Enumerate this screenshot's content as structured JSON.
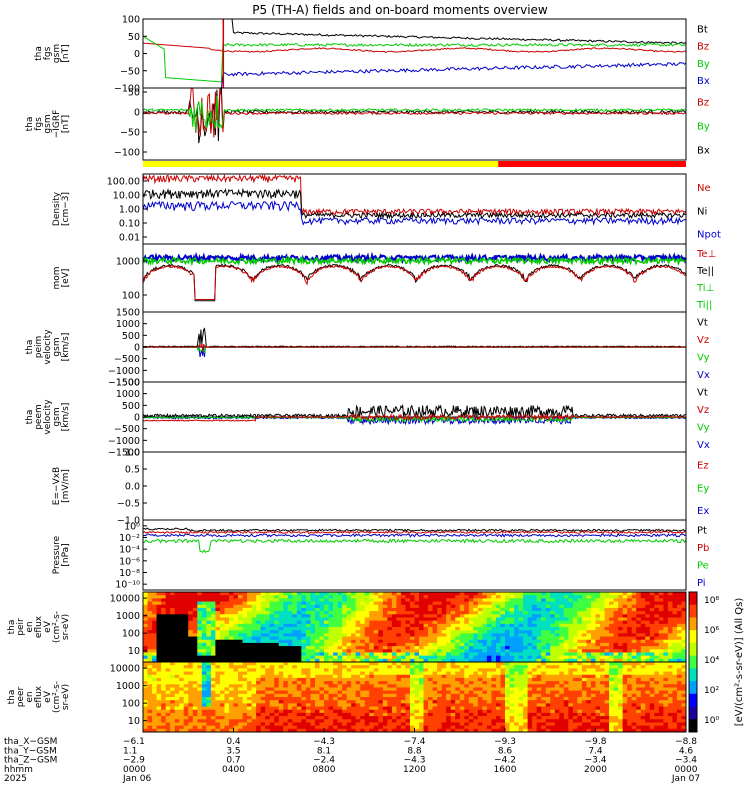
{
  "chart_data": {
    "type": "line",
    "title": "P5 (TH-A) fields and on-board moments overview",
    "panels": [
      {
        "ylabel": [
          "tha",
          "fgs",
          "gsm",
          "[nT]"
        ],
        "ylim": [
          -100,
          100
        ],
        "ticks": [
          "100",
          "50",
          "0",
          "−50",
          "−100"
        ],
        "tick_values": [
          100,
          50,
          0,
          -50,
          -100
        ],
        "series": [
          {
            "name": "Bt",
            "color": "#000000"
          },
          {
            "name": "Bz",
            "color": "#cc0000"
          },
          {
            "name": "By",
            "color": "#00cc00"
          },
          {
            "name": "Bx",
            "color": "#0000cc"
          }
        ]
      },
      {
        "ylabel": [
          "tha",
          "fgs",
          "gsm",
          "−IGRF",
          "[nT]"
        ],
        "ylim": [
          -120,
          60
        ],
        "ticks": [
          "50",
          "0",
          "−50",
          "−100"
        ],
        "tick_values": [
          50,
          0,
          -50,
          -100
        ],
        "series": [
          {
            "name": "Bz",
            "color": "#cc0000"
          },
          {
            "name": "By",
            "color": "#00cc00"
          },
          {
            "name": "Bx",
            "color": "#000000"
          }
        ]
      },
      {
        "ylabel": [
          "Density",
          "[cm−3]"
        ],
        "log": true,
        "ticks": [
          "100.00",
          "10.00",
          "1.00",
          "0.10",
          "0.01"
        ],
        "tick_values": [
          100,
          10,
          1,
          0.1,
          0.01
        ],
        "series": [
          {
            "name": "Ne",
            "color": "#cc0000"
          },
          {
            "name": "Ni",
            "color": "#000000"
          },
          {
            "name": "Npot",
            "color": "#0000cc"
          }
        ]
      },
      {
        "ylabel": [
          "mom",
          "[eV]"
        ],
        "log": true,
        "ticks": [
          "1000",
          "100"
        ],
        "tick_values": [
          1000,
          100
        ],
        "series": [
          {
            "name": "Te⊥",
            "color": "#cc0000"
          },
          {
            "name": "Te||",
            "color": "#000000"
          },
          {
            "name": "Ti⊥",
            "color": "#00cc00"
          },
          {
            "name": "Ti||",
            "color": "#00cc00"
          }
        ]
      },
      {
        "ylabel": [
          "tha",
          "peim",
          "velocity",
          "gsm",
          "[km/s]"
        ],
        "ylim": [
          -1500,
          1500
        ],
        "ticks": [
          "1500",
          "1000",
          "500",
          "0",
          "−500",
          "−1000",
          "−1500"
        ],
        "tick_values": [
          1500,
          1000,
          500,
          0,
          -500,
          -1000,
          -1500
        ],
        "series": [
          {
            "name": "Vt",
            "color": "#000000"
          },
          {
            "name": "Vz",
            "color": "#cc0000"
          },
          {
            "name": "Vy",
            "color": "#00cc00"
          },
          {
            "name": "Vx",
            "color": "#0000cc"
          }
        ]
      },
      {
        "ylabel": [
          "tha",
          "peem",
          "velocity",
          "gsm",
          "[km/s]"
        ],
        "ylim": [
          -1500,
          1500
        ],
        "ticks": [
          "1500",
          "1000",
          "500",
          "0",
          "−500",
          "−1000",
          "−1500"
        ],
        "tick_values": [
          1500,
          1000,
          500,
          0,
          -500,
          -1000,
          -1500
        ],
        "series": [
          {
            "name": "Vt",
            "color": "#000000"
          },
          {
            "name": "Vz",
            "color": "#cc0000"
          },
          {
            "name": "Vy",
            "color": "#00cc00"
          },
          {
            "name": "Vx",
            "color": "#0000cc"
          }
        ]
      },
      {
        "ylabel": [
          "E=−VxB",
          "[mV/m]"
        ],
        "ylim": [
          -1,
          1
        ],
        "ticks": [
          "1.0",
          "0.5",
          "0.0",
          "−0.5",
          "−1.0"
        ],
        "tick_values": [
          1,
          0.5,
          0,
          -0.5,
          -1
        ],
        "series": [
          {
            "name": "Ez",
            "color": "#cc0000"
          },
          {
            "name": "Ey",
            "color": "#00cc00"
          },
          {
            "name": "Ex",
            "color": "#0000cc"
          }
        ]
      },
      {
        "ylabel": [
          "Pressure",
          "[nPa]"
        ],
        "log": true,
        "ticks": [
          "10⁰",
          "10⁻²",
          "10⁻⁴",
          "10⁻⁶",
          "10⁻⁸",
          "10⁻¹⁰"
        ],
        "tick_values": [
          0,
          -2,
          -4,
          -6,
          -8,
          -10
        ],
        "series": [
          {
            "name": "Pt",
            "color": "#000000"
          },
          {
            "name": "Pb",
            "color": "#cc0000"
          },
          {
            "name": "Pe",
            "color": "#00cc00"
          },
          {
            "name": "Pi",
            "color": "#0000cc"
          }
        ]
      },
      {
        "type": "heatmap",
        "ylabel": [
          "tha",
          "peir",
          "en",
          "eflux",
          "eV",
          "(cm²-s-",
          "sr-eV)"
        ],
        "ticks": [
          "10000",
          "1000",
          "100",
          "10"
        ],
        "tick_values": [
          10000,
          1000,
          100,
          10
        ]
      },
      {
        "type": "heatmap",
        "ylabel": [
          "tha",
          "peer",
          "en",
          "eflux",
          "eV",
          "(cm²-s-",
          "sr-eV)"
        ],
        "ticks": [
          "10000",
          "1000",
          "100",
          "10"
        ],
        "tick_values": [
          10000,
          1000,
          100,
          10
        ]
      }
    ],
    "colorbar": {
      "label": "[eV/(cm²-s-sr-eV)] (All Qs)",
      "ticks": [
        "10⁸",
        "10⁶",
        "10⁴",
        "10²",
        "10⁰"
      ],
      "tick_exponents": [
        8,
        6,
        4,
        2,
        0
      ]
    },
    "x_axis": {
      "rows": [
        {
          "name": "tha_X−GSM",
          "values": [
            "−6.1",
            "0.4",
            "−4.3",
            "−7.4",
            "−9.3",
            "−9.8",
            "−8.8"
          ]
        },
        {
          "name": "tha_Y−GSM",
          "values": [
            "1.1",
            "3.5",
            "8.1",
            "8.8",
            "8.6",
            "7.4",
            "4.6"
          ]
        },
        {
          "name": "tha_Z−GSM",
          "values": [
            "−2.9",
            "0.7",
            "−2.4",
            "−4.3",
            "−4.2",
            "−3.4",
            "−3.4"
          ]
        },
        {
          "name": "hhmm",
          "values": [
            "0000",
            "0400",
            "0800",
            "1200",
            "1600",
            "2000",
            "0000"
          ]
        },
        {
          "name": "2025",
          "values": [
            "Jan 06",
            "",
            "",
            "",
            "",
            "",
            "Jan 07"
          ]
        }
      ],
      "hours": [
        0,
        4,
        8,
        12,
        16,
        20,
        24
      ]
    },
    "status_bar": [
      {
        "from_hour": 0,
        "to_hour": 15.7,
        "color": "#ffff00"
      },
      {
        "from_hour": 15.7,
        "to_hour": 24,
        "color": "#ff0000"
      }
    ]
  }
}
